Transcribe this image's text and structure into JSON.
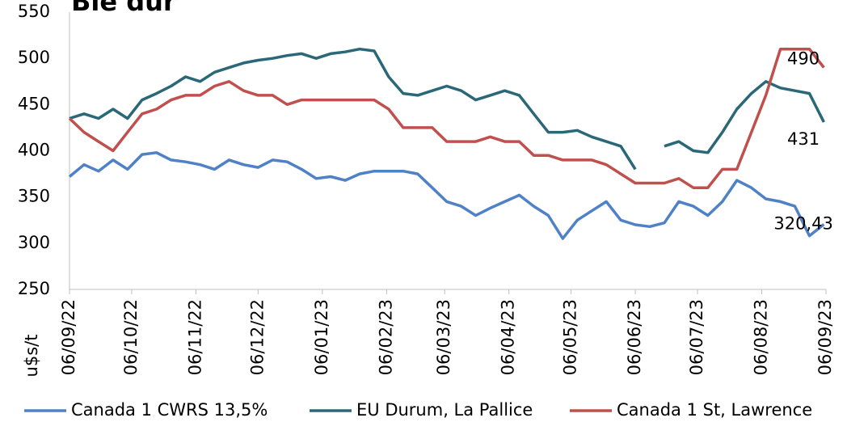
{
  "chart_data": {
    "type": "line",
    "title": "Blé dur",
    "y_label": "u$s/t",
    "x": [
      "2022-09-06",
      "2022-09-13",
      "2022-09-20",
      "2022-09-27",
      "2022-10-04",
      "2022-10-11",
      "2022-10-18",
      "2022-10-25",
      "2022-11-01",
      "2022-11-08",
      "2022-11-15",
      "2022-11-22",
      "2022-11-29",
      "2022-12-06",
      "2022-12-13",
      "2022-12-20",
      "2022-12-27",
      "2023-01-03",
      "2023-01-10",
      "2023-01-17",
      "2023-01-24",
      "2023-01-31",
      "2023-02-07",
      "2023-02-14",
      "2023-02-21",
      "2023-02-28",
      "2023-03-07",
      "2023-03-14",
      "2023-03-21",
      "2023-03-28",
      "2023-04-04",
      "2023-04-11",
      "2023-04-18",
      "2023-04-25",
      "2023-05-02",
      "2023-05-09",
      "2023-05-16",
      "2023-05-23",
      "2023-05-30",
      "2023-06-06",
      "2023-06-13",
      "2023-06-20",
      "2023-06-27",
      "2023-07-04",
      "2023-07-11",
      "2023-07-18",
      "2023-07-25",
      "2023-08-01",
      "2023-08-08",
      "2023-08-15",
      "2023-08-22",
      "2023-08-29",
      "2023-09-05"
    ],
    "series": [
      {
        "name": "Canada 1 CWRS 13,5%",
        "color": "#4f81c7",
        "values": [
          372,
          385,
          378,
          390,
          380,
          396,
          398,
          390,
          388,
          385,
          380,
          390,
          385,
          382,
          390,
          388,
          380,
          370,
          372,
          368,
          375,
          378,
          378,
          378,
          375,
          360,
          345,
          340,
          330,
          338,
          345,
          352,
          340,
          330,
          305,
          325,
          335,
          345,
          325,
          320,
          318,
          322,
          345,
          340,
          330,
          345,
          368,
          360,
          348,
          345,
          340,
          308,
          320.43
        ],
        "value_labels": [
          null,
          null,
          null,
          null,
          null,
          null,
          null,
          null,
          null,
          null,
          null,
          null,
          null,
          null,
          null,
          null,
          null,
          null,
          null,
          null,
          null,
          null,
          null,
          null,
          null,
          null,
          null,
          null,
          null,
          null,
          null,
          null,
          null,
          null,
          null,
          null,
          null,
          null,
          null,
          null,
          null,
          null,
          null,
          null,
          null,
          null,
          null,
          null,
          null,
          null,
          null,
          null,
          "320,43"
        ]
      },
      {
        "name": "EU Durum, La Pallice",
        "color": "#2a6877",
        "values": [
          435,
          440,
          435,
          445,
          435,
          455,
          462,
          470,
          480,
          475,
          485,
          490,
          495,
          498,
          500,
          503,
          505,
          500,
          505,
          507,
          510,
          508,
          480,
          462,
          460,
          465,
          470,
          465,
          455,
          460,
          465,
          460,
          440,
          420,
          420,
          422,
          415,
          410,
          405,
          380,
          null,
          405,
          410,
          400,
          398,
          420,
          445,
          462,
          475,
          468,
          465,
          462,
          431
        ],
        "value_labels": [
          null,
          null,
          null,
          null,
          null,
          null,
          null,
          null,
          null,
          null,
          null,
          null,
          null,
          null,
          null,
          null,
          null,
          null,
          null,
          null,
          null,
          null,
          null,
          null,
          null,
          null,
          null,
          null,
          null,
          null,
          null,
          null,
          null,
          null,
          null,
          null,
          null,
          null,
          null,
          null,
          null,
          null,
          null,
          null,
          null,
          null,
          null,
          null,
          null,
          null,
          null,
          null,
          "431"
        ]
      },
      {
        "name": "Canada 1 St, Lawrence",
        "color": "#c0504d",
        "values": [
          435,
          420,
          410,
          400,
          420,
          440,
          445,
          455,
          460,
          460,
          470,
          475,
          465,
          460,
          460,
          450,
          455,
          455,
          455,
          455,
          455,
          455,
          445,
          425,
          425,
          425,
          410,
          410,
          410,
          415,
          410,
          410,
          395,
          395,
          390,
          390,
          390,
          385,
          375,
          365,
          365,
          365,
          370,
          360,
          360,
          380,
          380,
          420,
          460,
          510,
          510,
          510,
          490
        ],
        "value_labels": [
          null,
          null,
          null,
          null,
          null,
          null,
          null,
          null,
          null,
          null,
          null,
          null,
          null,
          null,
          null,
          null,
          null,
          null,
          null,
          null,
          null,
          null,
          null,
          null,
          null,
          null,
          null,
          null,
          null,
          null,
          null,
          null,
          null,
          null,
          null,
          null,
          null,
          null,
          null,
          null,
          null,
          null,
          null,
          null,
          null,
          null,
          null,
          null,
          null,
          null,
          null,
          null,
          "490"
        ]
      }
    ],
    "xlim": [
      "2022-09-06",
      "2023-09-06"
    ],
    "xticks": [
      {
        "value": "2022-09-06",
        "label": "06/09/22"
      },
      {
        "value": "2022-10-06",
        "label": "06/10/22"
      },
      {
        "value": "2022-11-06",
        "label": "06/11/22"
      },
      {
        "value": "2022-12-06",
        "label": "06/12/22"
      },
      {
        "value": "2023-01-06",
        "label": "06/01/23"
      },
      {
        "value": "2023-02-06",
        "label": "06/02/23"
      },
      {
        "value": "2023-03-06",
        "label": "06/03/23"
      },
      {
        "value": "2023-04-06",
        "label": "06/04/23"
      },
      {
        "value": "2023-05-06",
        "label": "06/05/23"
      },
      {
        "value": "2023-06-06",
        "label": "06/06/23"
      },
      {
        "value": "2023-07-06",
        "label": "06/07/23"
      },
      {
        "value": "2023-08-06",
        "label": "06/08/23"
      },
      {
        "value": "2023-09-06",
        "label": "06/09/23"
      }
    ],
    "ylim": [
      250,
      550
    ],
    "yticks": [
      250,
      300,
      350,
      400,
      450,
      500,
      550
    ],
    "grid": false,
    "legend": "bottom"
  }
}
